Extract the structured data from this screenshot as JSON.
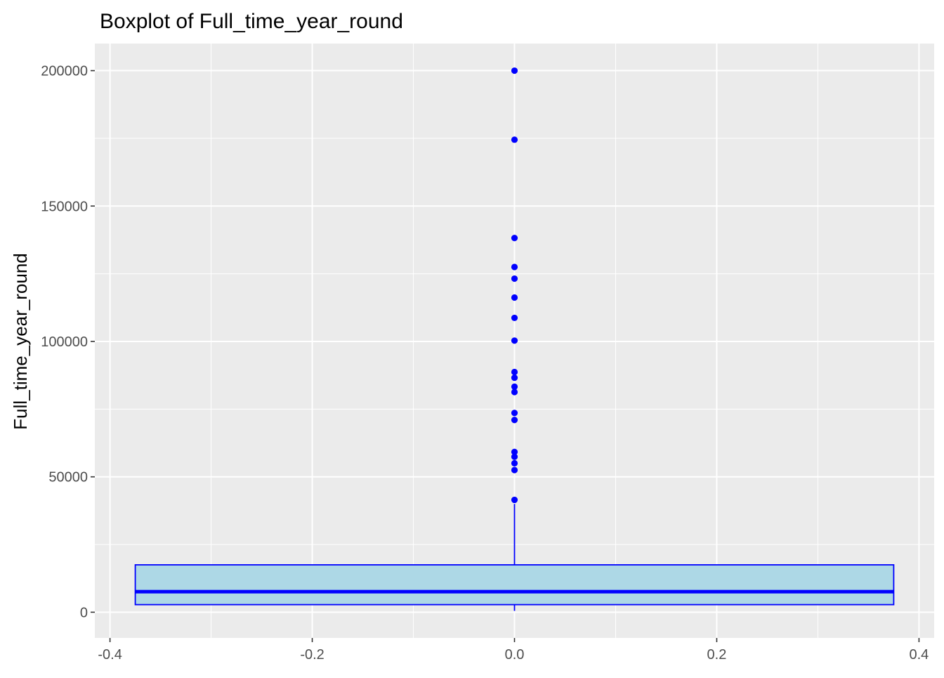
{
  "chart_data": {
    "type": "boxplot",
    "title": "Boxplot of Full_time_year_round",
    "xlabel": "",
    "ylabel": "Full_time_year_round",
    "xlim": [
      -0.415,
      0.415
    ],
    "ylim": [
      -9500,
      210000
    ],
    "x_ticks": [
      -0.4,
      -0.2,
      0.0,
      0.2,
      0.4
    ],
    "x_tick_labels": [
      "-0.4",
      "-0.2",
      "0.0",
      "0.2",
      "0.4"
    ],
    "x_minor_ticks": [
      -0.3,
      -0.1,
      0.1,
      0.3
    ],
    "y_ticks": [
      0,
      50000,
      100000,
      150000,
      200000
    ],
    "y_tick_labels": [
      "0",
      "50000",
      "100000",
      "150000",
      "200000"
    ],
    "y_minor_ticks": [
      25000,
      75000,
      125000,
      175000
    ],
    "grid": true,
    "box": {
      "x_center": 0.0,
      "x_min": -0.375,
      "x_max": 0.375,
      "lower_whisker": 500,
      "q1": 2800,
      "median": 7600,
      "q3": 17500,
      "upper_whisker": 40000,
      "fill": "#add8e6",
      "stroke": "#0000ff"
    },
    "outliers": [
      200000,
      174500,
      138200,
      127500,
      123200,
      116200,
      108700,
      100300,
      88700,
      86600,
      83300,
      81300,
      73600,
      71000,
      59200,
      57400,
      55000,
      52500,
      41500
    ],
    "point_color": "#0000ff",
    "panel_background": "#ebebeb",
    "grid_color": "#ffffff"
  }
}
